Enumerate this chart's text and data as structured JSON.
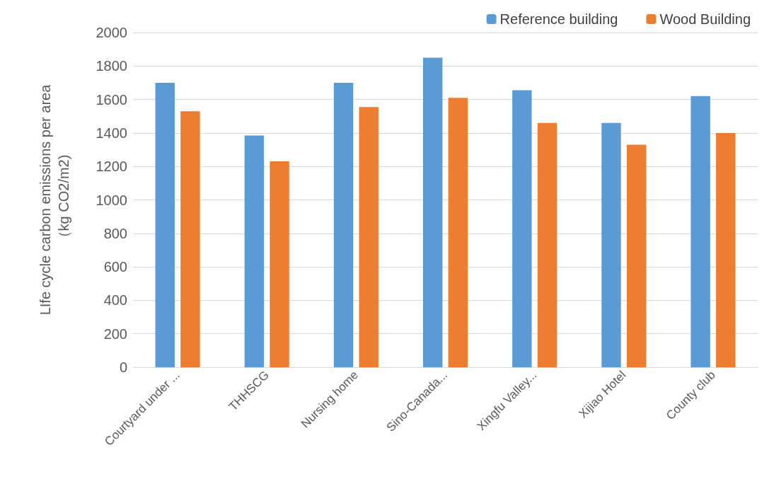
{
  "chart_data": {
    "type": "bar",
    "ylabel": "LIfe cycle carbon emissions per area\n（kg CO2/m2)",
    "categories": [
      "Courtyard under ...",
      "THHSCG",
      "Nursing home",
      "Sino-Canada...",
      "Xingfu Valley...",
      "Xijiao Hotel",
      "County club"
    ],
    "series": [
      {
        "name": "Reference building",
        "color": "#5b9bd5",
        "values": [
          1700,
          1385,
          1700,
          1850,
          1655,
          1460,
          1620
        ]
      },
      {
        "name": "Wood Building",
        "color": "#ed7d31",
        "values": [
          1530,
          1230,
          1555,
          1610,
          1460,
          1330,
          1400
        ]
      }
    ],
    "ylim": [
      0,
      2000
    ],
    "yticks": [
      0,
      200,
      400,
      600,
      800,
      1000,
      1200,
      1400,
      1600,
      1800,
      2000
    ],
    "grid": "y",
    "legend": "top right"
  }
}
